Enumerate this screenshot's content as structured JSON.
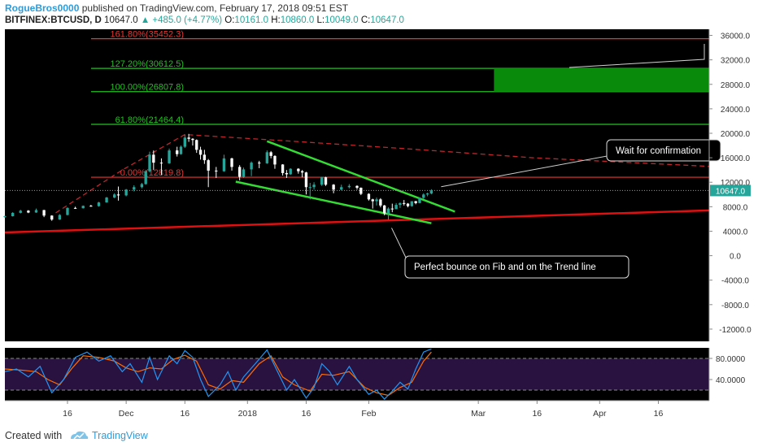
{
  "header": {
    "author": "RogueBros0000",
    "published_text": "published on TradingView.com, February 17, 2018 09:51 EST",
    "symbol": "BITFINEX:BTCUSD, D",
    "price": "10647.0",
    "change": "▲ +485.0 (+4.77%)",
    "o_label": "O:",
    "o_value": "10161.0",
    "h_label": "H:",
    "h_value": "10860.0",
    "l_label": "L:",
    "l_value": "10049.0",
    "c_label": "C:",
    "c_value": "10647.0"
  },
  "footer": {
    "created_with": "Created with",
    "brand": "TradingView"
  },
  "colors": {
    "background": "#000000",
    "up_candle": "#26a69a",
    "down_candle": "#ffffff",
    "fib_red": "#e53935",
    "fib_green": "#22c122",
    "target_box": "#0a8a0a",
    "trend_line": "#e01010",
    "channel": "#33dd33",
    "stoch_k": "#2196f3",
    "stoch_d": "#ff6d00",
    "stoch_band": "#2a1240"
  },
  "chart_data": {
    "type": "candlestick",
    "title": "BITFINEX:BTCUSD, D",
    "last_price": 10647.0,
    "last_price_label": "10647.0",
    "ylim": [
      -14000,
      37000
    ],
    "y_ticks": [
      36000,
      32000,
      28000,
      24000,
      20000,
      16000,
      12000,
      8000,
      4000,
      0,
      -4000,
      -8000,
      -12000
    ],
    "y_tick_labels": [
      "36000.0",
      "32000.0",
      "28000.0",
      "24000.0",
      "20000.0",
      "16000.0",
      "12000.0",
      "8000.0",
      "4000.0",
      "0.0",
      "-4000.0",
      "-8000.0",
      "-12000.0"
    ],
    "x_start": "2017-10-31",
    "x_end": "2018-04-29",
    "x_ticks": [
      {
        "date": "2017-11-16",
        "label": "16"
      },
      {
        "date": "2017-12-01",
        "label": "Dec"
      },
      {
        "date": "2017-12-16",
        "label": "16"
      },
      {
        "date": "2018-01-01",
        "label": "2018"
      },
      {
        "date": "2018-01-16",
        "label": "16"
      },
      {
        "date": "2018-02-01",
        "label": "Feb"
      },
      {
        "date": "2018-03-01",
        "label": "Mar"
      },
      {
        "date": "2018-03-16",
        "label": "16"
      },
      {
        "date": "2018-04-01",
        "label": "Apr"
      },
      {
        "date": "2018-04-16",
        "label": "16"
      }
    ],
    "fib_levels": [
      {
        "label": "161.80%(35452.3)",
        "ratio": 1.618,
        "value": 35452.3,
        "color": "red"
      },
      {
        "label": "127.20%(30612.5)",
        "ratio": 1.272,
        "value": 30612.5,
        "color": "green"
      },
      {
        "label": "100.00%(26807.8)",
        "ratio": 1.0,
        "value": 26807.8,
        "color": "green"
      },
      {
        "label": "61.80%(21464.4)",
        "ratio": 0.618,
        "value": 21464.4,
        "color": "green"
      },
      {
        "label": "0.00%(12819.8)",
        "ratio": 0.0,
        "value": 12819.8,
        "color": "red"
      }
    ],
    "target_zone": {
      "from_date": "2018-03-05",
      "to_date": "2018-04-29",
      "low": 26807.8,
      "high": 30612.5
    },
    "trend_line": {
      "from": {
        "date": "2017-10-31",
        "value": 3800
      },
      "to": {
        "date": "2018-04-29",
        "value": 7400
      }
    },
    "arc_curve": [
      {
        "date": "2017-11-13",
        "value": 7000
      },
      {
        "date": "2017-11-30",
        "value": 14000
      },
      {
        "date": "2017-12-16",
        "value": 19800
      },
      {
        "date": "2018-01-10",
        "value": 18800
      },
      {
        "date": "2018-02-10",
        "value": 17500
      },
      {
        "date": "2018-03-15",
        "value": 16000
      },
      {
        "date": "2018-04-29",
        "value": 14600
      }
    ],
    "channel_upper": {
      "from": {
        "date": "2018-01-06",
        "value": 18700
      },
      "to": {
        "date": "2018-02-23",
        "value": 7200
      }
    },
    "channel_lower": {
      "from": {
        "date": "2017-12-29",
        "value": 12100
      },
      "to": {
        "date": "2018-02-17",
        "value": 5300
      }
    },
    "candles": [
      {
        "d": "2017-10-31",
        "o": 6300,
        "h": 6550,
        "l": 6200,
        "c": 6450
      },
      {
        "d": "2017-11-02",
        "o": 6450,
        "h": 7100,
        "l": 6400,
        "c": 7000
      },
      {
        "d": "2017-11-04",
        "o": 7000,
        "h": 7500,
        "l": 6900,
        "c": 7350
      },
      {
        "d": "2017-11-06",
        "o": 7350,
        "h": 7450,
        "l": 6950,
        "c": 7050
      },
      {
        "d": "2017-11-08",
        "o": 7050,
        "h": 7700,
        "l": 7000,
        "c": 7450
      },
      {
        "d": "2017-11-10",
        "o": 7450,
        "h": 7500,
        "l": 6300,
        "c": 6550
      },
      {
        "d": "2017-11-12",
        "o": 6550,
        "h": 6600,
        "l": 5700,
        "c": 5900
      },
      {
        "d": "2017-11-14",
        "o": 5900,
        "h": 6800,
        "l": 5850,
        "c": 6650
      },
      {
        "d": "2017-11-16",
        "o": 6650,
        "h": 7900,
        "l": 6600,
        "c": 7800
      },
      {
        "d": "2017-11-18",
        "o": 7800,
        "h": 8000,
        "l": 7650,
        "c": 7750
      },
      {
        "d": "2017-11-20",
        "o": 7750,
        "h": 8200,
        "l": 7700,
        "c": 8150
      },
      {
        "d": "2017-11-22",
        "o": 8150,
        "h": 8300,
        "l": 8000,
        "c": 8100
      },
      {
        "d": "2017-11-24",
        "o": 8100,
        "h": 8800,
        "l": 8000,
        "c": 8700
      },
      {
        "d": "2017-11-26",
        "o": 8700,
        "h": 9600,
        "l": 8650,
        "c": 9500
      },
      {
        "d": "2017-11-28",
        "o": 9500,
        "h": 10200,
        "l": 9400,
        "c": 10000
      },
      {
        "d": "2017-11-29",
        "o": 10000,
        "h": 11300,
        "l": 9000,
        "c": 9850
      },
      {
        "d": "2017-12-01",
        "o": 9850,
        "h": 10900,
        "l": 9700,
        "c": 10800
      },
      {
        "d": "2017-12-03",
        "o": 10800,
        "h": 11500,
        "l": 10500,
        "c": 11200
      },
      {
        "d": "2017-12-05",
        "o": 11200,
        "h": 11900,
        "l": 11000,
        "c": 11700
      },
      {
        "d": "2017-12-06",
        "o": 11700,
        "h": 14000,
        "l": 11600,
        "c": 13800
      },
      {
        "d": "2017-12-07",
        "o": 13800,
        "h": 17000,
        "l": 13600,
        "c": 16500
      },
      {
        "d": "2017-12-08",
        "o": 16500,
        "h": 17200,
        "l": 14000,
        "c": 15200
      },
      {
        "d": "2017-12-10",
        "o": 15200,
        "h": 15900,
        "l": 13200,
        "c": 15100
      },
      {
        "d": "2017-12-12",
        "o": 15100,
        "h": 17500,
        "l": 15000,
        "c": 17200
      },
      {
        "d": "2017-12-14",
        "o": 17200,
        "h": 17800,
        "l": 16200,
        "c": 16600
      },
      {
        "d": "2017-12-15",
        "o": 16600,
        "h": 18000,
        "l": 16500,
        "c": 17800
      },
      {
        "d": "2017-12-16",
        "o": 17800,
        "h": 19800,
        "l": 17600,
        "c": 19300
      },
      {
        "d": "2017-12-17",
        "o": 19300,
        "h": 19900,
        "l": 18600,
        "c": 19100
      },
      {
        "d": "2017-12-18",
        "o": 19100,
        "h": 19200,
        "l": 18000,
        "c": 18900
      },
      {
        "d": "2017-12-19",
        "o": 18900,
        "h": 19000,
        "l": 16800,
        "c": 17300
      },
      {
        "d": "2017-12-20",
        "o": 17300,
        "h": 17800,
        "l": 15700,
        "c": 16500
      },
      {
        "d": "2017-12-21",
        "o": 16500,
        "h": 17300,
        "l": 15000,
        "c": 15600
      },
      {
        "d": "2017-12-22",
        "o": 15600,
        "h": 15800,
        "l": 11200,
        "c": 13900
      },
      {
        "d": "2017-12-24",
        "o": 13900,
        "h": 14500,
        "l": 12700,
        "c": 13800
      },
      {
        "d": "2017-12-26",
        "o": 13800,
        "h": 16500,
        "l": 13700,
        "c": 15900
      },
      {
        "d": "2017-12-28",
        "o": 15900,
        "h": 16000,
        "l": 13900,
        "c": 14500
      },
      {
        "d": "2017-12-30",
        "o": 14500,
        "h": 14800,
        "l": 12300,
        "c": 12900
      },
      {
        "d": "2017-12-31",
        "o": 12900,
        "h": 14400,
        "l": 12700,
        "c": 14100
      },
      {
        "d": "2018-01-02",
        "o": 14100,
        "h": 15400,
        "l": 13000,
        "c": 15200
      },
      {
        "d": "2018-01-04",
        "o": 15200,
        "h": 15500,
        "l": 14300,
        "c": 15100
      },
      {
        "d": "2018-01-06",
        "o": 15100,
        "h": 17200,
        "l": 15000,
        "c": 16900
      },
      {
        "d": "2018-01-07",
        "o": 16900,
        "h": 17100,
        "l": 15900,
        "c": 16300
      },
      {
        "d": "2018-01-08",
        "o": 16300,
        "h": 16400,
        "l": 14200,
        "c": 14900
      },
      {
        "d": "2018-01-10",
        "o": 14900,
        "h": 14950,
        "l": 13100,
        "c": 13500
      },
      {
        "d": "2018-01-11",
        "o": 13500,
        "h": 14000,
        "l": 12700,
        "c": 13300
      },
      {
        "d": "2018-01-12",
        "o": 13300,
        "h": 14300,
        "l": 13200,
        "c": 14200
      },
      {
        "d": "2018-01-14",
        "o": 14200,
        "h": 14300,
        "l": 13400,
        "c": 13800
      },
      {
        "d": "2018-01-15",
        "o": 13800,
        "h": 14000,
        "l": 12800,
        "c": 13600
      },
      {
        "d": "2018-01-16",
        "o": 13600,
        "h": 13700,
        "l": 10000,
        "c": 11200
      },
      {
        "d": "2018-01-17",
        "o": 11200,
        "h": 11900,
        "l": 9200,
        "c": 11200
      },
      {
        "d": "2018-01-18",
        "o": 11200,
        "h": 12000,
        "l": 10800,
        "c": 11600
      },
      {
        "d": "2018-01-20",
        "o": 11600,
        "h": 12900,
        "l": 11400,
        "c": 12800
      },
      {
        "d": "2018-01-21",
        "o": 12800,
        "h": 12900,
        "l": 11400,
        "c": 11600
      },
      {
        "d": "2018-01-23",
        "o": 11600,
        "h": 11700,
        "l": 10200,
        "c": 10800
      },
      {
        "d": "2018-01-25",
        "o": 10800,
        "h": 11600,
        "l": 10700,
        "c": 11200
      },
      {
        "d": "2018-01-27",
        "o": 11200,
        "h": 11700,
        "l": 11000,
        "c": 11400
      },
      {
        "d": "2018-01-29",
        "o": 11400,
        "h": 11500,
        "l": 10800,
        "c": 11100
      },
      {
        "d": "2018-01-30",
        "o": 11100,
        "h": 11150,
        "l": 9900,
        "c": 10100
      },
      {
        "d": "2018-02-01",
        "o": 10100,
        "h": 10200,
        "l": 9000,
        "c": 9200
      },
      {
        "d": "2018-02-02",
        "o": 9200,
        "h": 9300,
        "l": 7700,
        "c": 8900
      },
      {
        "d": "2018-02-03",
        "o": 8900,
        "h": 9500,
        "l": 8200,
        "c": 9200
      },
      {
        "d": "2018-02-04",
        "o": 9200,
        "h": 9400,
        "l": 7900,
        "c": 8200
      },
      {
        "d": "2018-02-05",
        "o": 8200,
        "h": 8300,
        "l": 6600,
        "c": 6900
      },
      {
        "d": "2018-02-06",
        "o": 6900,
        "h": 7900,
        "l": 5900,
        "c": 7700
      },
      {
        "d": "2018-02-07",
        "o": 7700,
        "h": 8500,
        "l": 7100,
        "c": 7600
      },
      {
        "d": "2018-02-08",
        "o": 7600,
        "h": 8600,
        "l": 7600,
        "c": 8300
      },
      {
        "d": "2018-02-09",
        "o": 8300,
        "h": 8700,
        "l": 7800,
        "c": 8600
      },
      {
        "d": "2018-02-10",
        "o": 8600,
        "h": 9100,
        "l": 8200,
        "c": 8500
      },
      {
        "d": "2018-02-11",
        "o": 8500,
        "h": 8600,
        "l": 7900,
        "c": 8100
      },
      {
        "d": "2018-02-12",
        "o": 8100,
        "h": 8900,
        "l": 8000,
        "c": 8900
      },
      {
        "d": "2018-02-13",
        "o": 8900,
        "h": 8950,
        "l": 8400,
        "c": 8600
      },
      {
        "d": "2018-02-14",
        "o": 8600,
        "h": 9500,
        "l": 8550,
        "c": 9450
      },
      {
        "d": "2018-02-15",
        "o": 9450,
        "h": 10200,
        "l": 9300,
        "c": 10000
      },
      {
        "d": "2018-02-16",
        "o": 10000,
        "h": 10300,
        "l": 9700,
        "c": 10160
      },
      {
        "d": "2018-02-17",
        "o": 10161,
        "h": 10860,
        "l": 10049,
        "c": 10647
      }
    ],
    "callouts": [
      {
        "text": "Wait for confirmation",
        "point": {
          "date": "2018-02-17",
          "value": 11000
        }
      },
      {
        "text": "Perfect bounce on Fib and on the Trend line",
        "point": {
          "date": "2018-02-06",
          "value": 4800
        }
      }
    ],
    "stoch_ylim": [
      0,
      100
    ],
    "stoch_ticks": [
      80,
      40
    ],
    "stoch_tick_labels": [
      "80.0000",
      "40.0000"
    ],
    "stoch_band": [
      20,
      80
    ],
    "stoch_k": [
      {
        "d": "2017-10-31",
        "v": 55
      },
      {
        "d": "2017-11-03",
        "v": 60
      },
      {
        "d": "2017-11-06",
        "v": 45
      },
      {
        "d": "2017-11-09",
        "v": 65
      },
      {
        "d": "2017-11-12",
        "v": 15
      },
      {
        "d": "2017-11-15",
        "v": 40
      },
      {
        "d": "2017-11-18",
        "v": 82
      },
      {
        "d": "2017-11-21",
        "v": 92
      },
      {
        "d": "2017-11-24",
        "v": 75
      },
      {
        "d": "2017-11-27",
        "v": 85
      },
      {
        "d": "2017-11-30",
        "v": 55
      },
      {
        "d": "2017-12-02",
        "v": 70
      },
      {
        "d": "2017-12-05",
        "v": 35
      },
      {
        "d": "2017-12-07",
        "v": 82
      },
      {
        "d": "2017-12-09",
        "v": 40
      },
      {
        "d": "2017-12-12",
        "v": 85
      },
      {
        "d": "2017-12-14",
        "v": 70
      },
      {
        "d": "2017-12-16",
        "v": 95
      },
      {
        "d": "2017-12-18",
        "v": 82
      },
      {
        "d": "2017-12-20",
        "v": 40
      },
      {
        "d": "2017-12-22",
        "v": 8
      },
      {
        "d": "2017-12-25",
        "v": 30
      },
      {
        "d": "2017-12-27",
        "v": 55
      },
      {
        "d": "2017-12-29",
        "v": 20
      },
      {
        "d": "2017-12-31",
        "v": 45
      },
      {
        "d": "2018-01-03",
        "v": 70
      },
      {
        "d": "2018-01-06",
        "v": 96
      },
      {
        "d": "2018-01-09",
        "v": 50
      },
      {
        "d": "2018-01-11",
        "v": 20
      },
      {
        "d": "2018-01-13",
        "v": 40
      },
      {
        "d": "2018-01-16",
        "v": 5
      },
      {
        "d": "2018-01-18",
        "v": 25
      },
      {
        "d": "2018-01-20",
        "v": 70
      },
      {
        "d": "2018-01-22",
        "v": 55
      },
      {
        "d": "2018-01-24",
        "v": 30
      },
      {
        "d": "2018-01-27",
        "v": 65
      },
      {
        "d": "2018-01-29",
        "v": 40
      },
      {
        "d": "2018-02-01",
        "v": 12
      },
      {
        "d": "2018-02-03",
        "v": 20
      },
      {
        "d": "2018-02-05",
        "v": 3
      },
      {
        "d": "2018-02-07",
        "v": 18
      },
      {
        "d": "2018-02-09",
        "v": 35
      },
      {
        "d": "2018-02-11",
        "v": 22
      },
      {
        "d": "2018-02-13",
        "v": 60
      },
      {
        "d": "2018-02-15",
        "v": 92
      },
      {
        "d": "2018-02-17",
        "v": 98
      }
    ],
    "stoch_d": [
      {
        "d": "2017-10-31",
        "v": 60
      },
      {
        "d": "2017-11-04",
        "v": 58
      },
      {
        "d": "2017-11-08",
        "v": 55
      },
      {
        "d": "2017-11-11",
        "v": 40
      },
      {
        "d": "2017-11-14",
        "v": 30
      },
      {
        "d": "2017-11-17",
        "v": 60
      },
      {
        "d": "2017-11-20",
        "v": 85
      },
      {
        "d": "2017-11-24",
        "v": 82
      },
      {
        "d": "2017-11-28",
        "v": 75
      },
      {
        "d": "2017-12-01",
        "v": 62
      },
      {
        "d": "2017-12-04",
        "v": 55
      },
      {
        "d": "2017-12-07",
        "v": 62
      },
      {
        "d": "2017-12-10",
        "v": 60
      },
      {
        "d": "2017-12-13",
        "v": 78
      },
      {
        "d": "2017-12-16",
        "v": 86
      },
      {
        "d": "2017-12-19",
        "v": 75
      },
      {
        "d": "2017-12-22",
        "v": 30
      },
      {
        "d": "2017-12-25",
        "v": 22
      },
      {
        "d": "2017-12-28",
        "v": 38
      },
      {
        "d": "2017-12-31",
        "v": 35
      },
      {
        "d": "2018-01-04",
        "v": 70
      },
      {
        "d": "2018-01-07",
        "v": 85
      },
      {
        "d": "2018-01-10",
        "v": 45
      },
      {
        "d": "2018-01-13",
        "v": 30
      },
      {
        "d": "2018-01-17",
        "v": 18
      },
      {
        "d": "2018-01-20",
        "v": 50
      },
      {
        "d": "2018-01-23",
        "v": 48
      },
      {
        "d": "2018-01-27",
        "v": 55
      },
      {
        "d": "2018-01-31",
        "v": 25
      },
      {
        "d": "2018-02-03",
        "v": 15
      },
      {
        "d": "2018-02-06",
        "v": 10
      },
      {
        "d": "2018-02-09",
        "v": 25
      },
      {
        "d": "2018-02-12",
        "v": 35
      },
      {
        "d": "2018-02-15",
        "v": 75
      },
      {
        "d": "2018-02-17",
        "v": 92
      }
    ]
  }
}
